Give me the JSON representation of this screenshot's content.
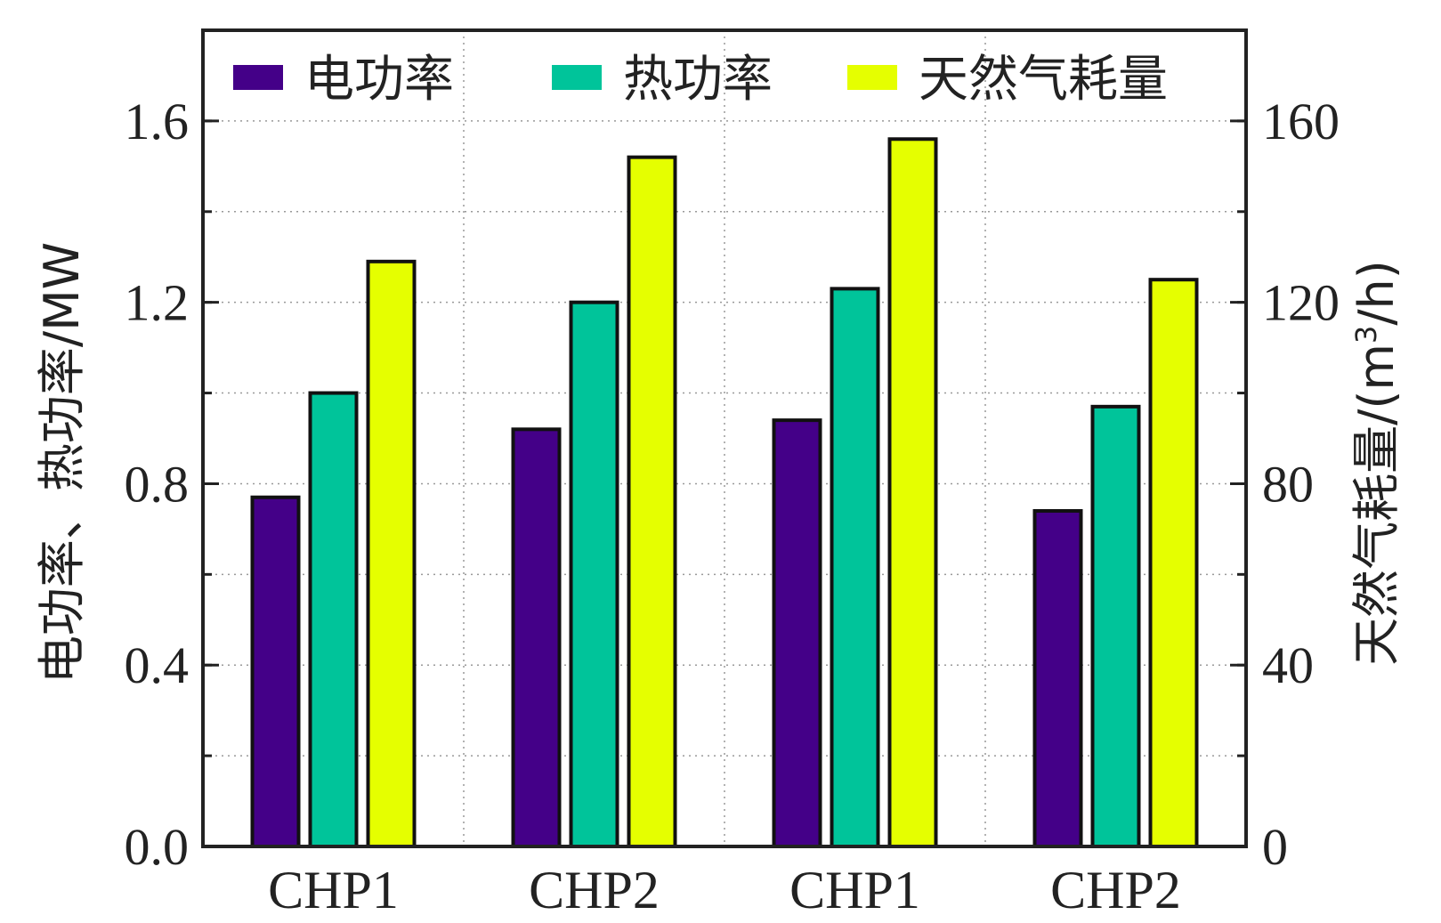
{
  "chart_data": {
    "type": "bar",
    "categories": [
      "CHP1",
      "CHP2",
      "CHP1",
      "CHP2"
    ],
    "series": [
      {
        "name": "电功率",
        "axis": "left",
        "color": "#440088",
        "values": [
          0.77,
          0.92,
          0.94,
          0.74
        ]
      },
      {
        "name": "热功率",
        "axis": "left",
        "color": "#00c49a",
        "values": [
          1.0,
          1.2,
          1.23,
          0.97
        ]
      },
      {
        "name": "天然气耗量",
        "axis": "right",
        "color": "#e5ff00",
        "values": [
          129,
          152,
          156,
          125
        ]
      }
    ],
    "ylabel": "电功率、热功率/MW",
    "ylabel_right_prefix": "天然气耗量/(m",
    "ylabel_right_sup": "3",
    "ylabel_right_suffix": "/h)",
    "ylim": [
      0,
      1.8
    ],
    "ylim_right": [
      0,
      180
    ],
    "yticks": [
      "0.0",
      "0.4",
      "0.8",
      "1.2",
      "1.6"
    ],
    "yticks_right": [
      "0",
      "40",
      "80",
      "120",
      "160"
    ],
    "legend_position": "top",
    "grid": "dotted"
  }
}
